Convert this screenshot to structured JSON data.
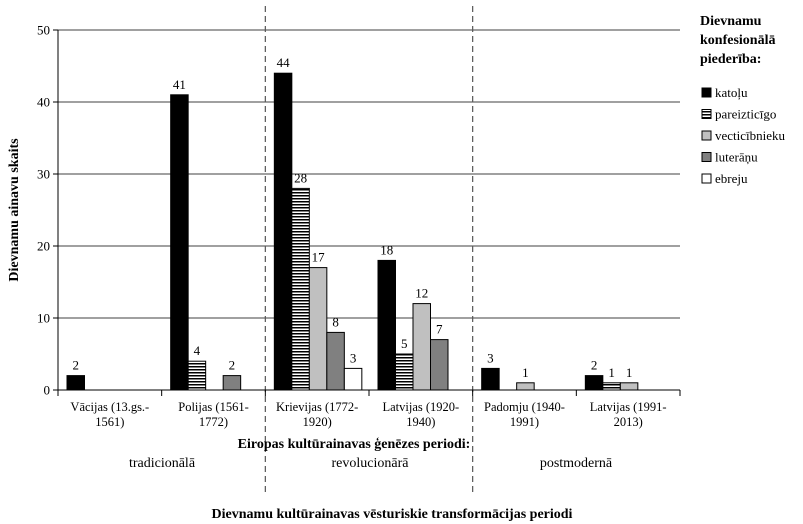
{
  "chart_data": {
    "type": "bar",
    "ylabel": "Dievnamu ainavu skaits",
    "xlabel": "Eiropas kultūrainavas ģenēzes periodi:",
    "bottom_title": "Dievnamu kultūrainavas vēsturiskie transformācijas periodi",
    "ylim": [
      0,
      50
    ],
    "yticks": [
      0,
      10,
      20,
      30,
      40,
      50
    ],
    "grid": true,
    "legend_title": [
      "Dievnamu",
      "konfesionālā",
      "piederība:"
    ],
    "legend_position": "right",
    "categories": [
      [
        "Vācijas (13.gs.-",
        "1561)"
      ],
      [
        "Polijas (1561-",
        "1772)"
      ],
      [
        "Krievijas (1772-",
        "1920)"
      ],
      [
        "Latvijas (1920-",
        "1940)"
      ],
      [
        "Padomju (1940-",
        "1991)"
      ],
      [
        "Latvijas (1991-",
        "2013)"
      ]
    ],
    "periods": [
      "tradicionālā",
      "revolucionārā",
      "postmodernā"
    ],
    "series": [
      {
        "name": "katoļu",
        "color": "#000000",
        "fill": "solid",
        "values": [
          2,
          41,
          44,
          18,
          3,
          2
        ]
      },
      {
        "name": "pareizticīgo",
        "color": "#000000",
        "fill": "stripes",
        "values": [
          null,
          4,
          28,
          5,
          null,
          1
        ]
      },
      {
        "name": "vecticībnieku",
        "color": "#c0c0c0",
        "fill": "solid",
        "values": [
          null,
          null,
          17,
          12,
          1,
          1
        ]
      },
      {
        "name": "luterāņu",
        "color": "#808080",
        "fill": "solid",
        "values": [
          null,
          2,
          8,
          7,
          null,
          null
        ]
      },
      {
        "name": "ebreju",
        "color": "#ffffff",
        "fill": "solid",
        "values": [
          null,
          null,
          3,
          null,
          null,
          null
        ]
      }
    ]
  }
}
